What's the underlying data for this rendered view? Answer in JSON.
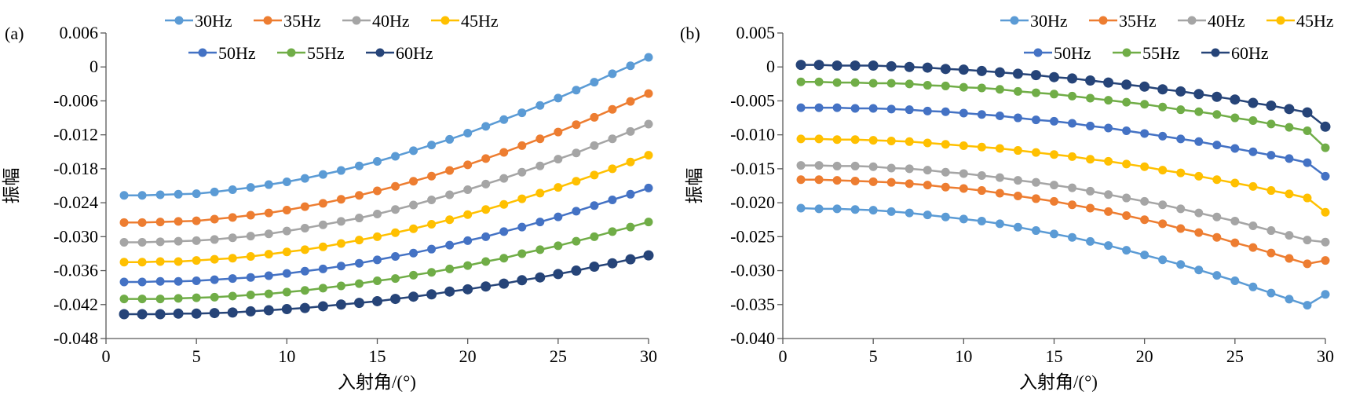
{
  "chart_data": [
    {
      "type": "line",
      "panel_label": "(a)",
      "xlabel": "入射角/(°)",
      "ylabel": "振幅",
      "xlim": [
        0,
        30
      ],
      "ylim": [
        -0.048,
        0.006
      ],
      "xticks": [
        0,
        5,
        10,
        15,
        20,
        25,
        30
      ],
      "yticks": [
        0.006,
        0,
        -0.006,
        -0.012,
        -0.018,
        -0.024,
        -0.03,
        -0.036,
        -0.042,
        -0.048
      ],
      "ytick_labels": [
        "0.006",
        "0",
        "-0.006",
        "-0.012",
        "-0.018",
        "-0.024",
        "-0.030",
        "-0.036",
        "-0.042",
        "-0.048"
      ],
      "xtick_labels": [
        "0",
        "5",
        "10",
        "15",
        "20",
        "25",
        "30"
      ],
      "grid": false,
      "legend_position": "top",
      "x": [
        1,
        2,
        3,
        4,
        5,
        6,
        7,
        8,
        9,
        10,
        11,
        12,
        13,
        14,
        15,
        16,
        17,
        18,
        19,
        20,
        21,
        22,
        23,
        24,
        25,
        26,
        27,
        28,
        29,
        30
      ],
      "series": [
        {
          "name": "30Hz",
          "color": "#5B9BD5",
          "values": [
            -0.0227,
            -0.0227,
            -0.0226,
            -0.0225,
            -0.0224,
            -0.0221,
            -0.0217,
            -0.0213,
            -0.0208,
            -0.0203,
            -0.0197,
            -0.019,
            -0.0183,
            -0.0175,
            -0.0167,
            -0.0158,
            -0.0148,
            -0.0138,
            -0.0128,
            -0.0117,
            -0.0105,
            -0.0093,
            -0.0081,
            -0.0068,
            -0.0055,
            -0.0041,
            -0.0027,
            -0.0012,
            0.0002,
            0.0017
          ]
        },
        {
          "name": "35Hz",
          "color": "#ED7D31",
          "values": [
            -0.0275,
            -0.0275,
            -0.0274,
            -0.0273,
            -0.0272,
            -0.0269,
            -0.0266,
            -0.0262,
            -0.0258,
            -0.0253,
            -0.0247,
            -0.0241,
            -0.0234,
            -0.0227,
            -0.0219,
            -0.0211,
            -0.0202,
            -0.0193,
            -0.0183,
            -0.0173,
            -0.0162,
            -0.0151,
            -0.0139,
            -0.0127,
            -0.0115,
            -0.0102,
            -0.0089,
            -0.0075,
            -0.0061,
            -0.0047
          ]
        },
        {
          "name": "40Hz",
          "color": "#A5A5A5",
          "values": [
            -0.031,
            -0.031,
            -0.0309,
            -0.0308,
            -0.0307,
            -0.0305,
            -0.0302,
            -0.0299,
            -0.0295,
            -0.029,
            -0.0285,
            -0.0279,
            -0.0273,
            -0.0267,
            -0.026,
            -0.0252,
            -0.0244,
            -0.0235,
            -0.0226,
            -0.0217,
            -0.0207,
            -0.0197,
            -0.0186,
            -0.0175,
            -0.0163,
            -0.0152,
            -0.0139,
            -0.0127,
            -0.0114,
            -0.0101
          ]
        },
        {
          "name": "45Hz",
          "color": "#FFC000",
          "values": [
            -0.0345,
            -0.0345,
            -0.0344,
            -0.0344,
            -0.0342,
            -0.034,
            -0.0338,
            -0.0335,
            -0.0331,
            -0.0327,
            -0.0323,
            -0.0318,
            -0.0312,
            -0.0306,
            -0.03,
            -0.0293,
            -0.0286,
            -0.0278,
            -0.027,
            -0.0261,
            -0.0252,
            -0.0243,
            -0.0233,
            -0.0223,
            -0.0213,
            -0.0202,
            -0.0191,
            -0.018,
            -0.0168,
            -0.0156
          ]
        },
        {
          "name": "50Hz",
          "color": "#4472C4",
          "values": [
            -0.038,
            -0.038,
            -0.0379,
            -0.0379,
            -0.0378,
            -0.0376,
            -0.0374,
            -0.0372,
            -0.0369,
            -0.0365,
            -0.0361,
            -0.0357,
            -0.0352,
            -0.0347,
            -0.0341,
            -0.0335,
            -0.0329,
            -0.0322,
            -0.0315,
            -0.0307,
            -0.03,
            -0.0291,
            -0.0283,
            -0.0274,
            -0.0265,
            -0.0255,
            -0.0245,
            -0.0235,
            -0.0225,
            -0.0214
          ]
        },
        {
          "name": "55Hz",
          "color": "#70AD47",
          "values": [
            -0.041,
            -0.041,
            -0.041,
            -0.0409,
            -0.0408,
            -0.0407,
            -0.0405,
            -0.0403,
            -0.0401,
            -0.0398,
            -0.0395,
            -0.0391,
            -0.0387,
            -0.0383,
            -0.0378,
            -0.0374,
            -0.0368,
            -0.0363,
            -0.0357,
            -0.0351,
            -0.0344,
            -0.0338,
            -0.033,
            -0.0323,
            -0.0316,
            -0.0308,
            -0.03,
            -0.0291,
            -0.0283,
            -0.0274
          ]
        },
        {
          "name": "60Hz",
          "color": "#264478",
          "values": [
            -0.0437,
            -0.0437,
            -0.0437,
            -0.0436,
            -0.0436,
            -0.0435,
            -0.0434,
            -0.0432,
            -0.043,
            -0.0428,
            -0.0426,
            -0.0423,
            -0.042,
            -0.0417,
            -0.0414,
            -0.041,
            -0.0406,
            -0.0402,
            -0.0397,
            -0.0393,
            -0.0388,
            -0.0383,
            -0.0377,
            -0.0372,
            -0.0366,
            -0.036,
            -0.0353,
            -0.0347,
            -0.034,
            -0.0333
          ]
        }
      ]
    },
    {
      "type": "line",
      "panel_label": "(b)",
      "xlabel": "入射角/(°)",
      "ylabel": "振幅",
      "xlim": [
        0,
        30
      ],
      "ylim": [
        -0.04,
        0.005
      ],
      "xticks": [
        0,
        5,
        10,
        15,
        20,
        25,
        30
      ],
      "yticks": [
        0.005,
        0,
        -0.005,
        -0.01,
        -0.015,
        -0.02,
        -0.025,
        -0.03,
        -0.035,
        -0.04
      ],
      "ytick_labels": [
        "0.005",
        "0",
        "-0.005",
        "-0.010",
        "-0.015",
        "-0.020",
        "-0.025",
        "-0.030",
        "-0.035",
        "-0.040"
      ],
      "xtick_labels": [
        "0",
        "5",
        "10",
        "15",
        "20",
        "25",
        "30"
      ],
      "grid": false,
      "legend_position": "top",
      "x": [
        1,
        2,
        3,
        4,
        5,
        6,
        7,
        8,
        9,
        10,
        11,
        12,
        13,
        14,
        15,
        16,
        17,
        18,
        19,
        20,
        21,
        22,
        23,
        24,
        25,
        26,
        27,
        28,
        29,
        30
      ],
      "series": [
        {
          "name": "30Hz",
          "color": "#5B9BD5",
          "values": [
            -0.0208,
            -0.0209,
            -0.0209,
            -0.021,
            -0.0211,
            -0.0213,
            -0.0215,
            -0.0218,
            -0.0221,
            -0.0224,
            -0.0227,
            -0.0231,
            -0.0236,
            -0.0241,
            -0.0246,
            -0.0251,
            -0.0257,
            -0.0263,
            -0.027,
            -0.0277,
            -0.0284,
            -0.0291,
            -0.0299,
            -0.0307,
            -0.0315,
            -0.0324,
            -0.0333,
            -0.0342,
            -0.0351,
            -0.0335
          ]
        },
        {
          "name": "35Hz",
          "color": "#ED7D31",
          "values": [
            -0.0166,
            -0.0166,
            -0.0167,
            -0.0168,
            -0.0169,
            -0.017,
            -0.0172,
            -0.0174,
            -0.0177,
            -0.0179,
            -0.0182,
            -0.0186,
            -0.019,
            -0.0194,
            -0.0198,
            -0.0203,
            -0.0208,
            -0.0213,
            -0.0219,
            -0.0225,
            -0.0231,
            -0.0238,
            -0.0244,
            -0.0251,
            -0.0259,
            -0.0266,
            -0.0274,
            -0.0282,
            -0.029,
            -0.0285
          ]
        },
        {
          "name": "40Hz",
          "color": "#A5A5A5",
          "values": [
            -0.0145,
            -0.0145,
            -0.0146,
            -0.0146,
            -0.0147,
            -0.0149,
            -0.015,
            -0.0152,
            -0.0155,
            -0.0157,
            -0.016,
            -0.0163,
            -0.0167,
            -0.017,
            -0.0174,
            -0.0178,
            -0.0183,
            -0.0188,
            -0.0193,
            -0.0198,
            -0.0203,
            -0.0209,
            -0.0215,
            -0.0221,
            -0.0227,
            -0.0234,
            -0.0241,
            -0.0248,
            -0.0255,
            -0.0258
          ]
        },
        {
          "name": "45Hz",
          "color": "#FFC000",
          "values": [
            -0.0106,
            -0.0106,
            -0.0107,
            -0.0107,
            -0.0108,
            -0.0109,
            -0.011,
            -0.0112,
            -0.0114,
            -0.0116,
            -0.0118,
            -0.012,
            -0.0123,
            -0.0126,
            -0.0129,
            -0.0132,
            -0.0136,
            -0.0139,
            -0.0143,
            -0.0147,
            -0.0152,
            -0.0156,
            -0.0161,
            -0.0166,
            -0.0171,
            -0.0176,
            -0.0182,
            -0.0187,
            -0.0193,
            -0.0214
          ]
        },
        {
          "name": "50Hz",
          "color": "#4472C4",
          "values": [
            -0.006,
            -0.006,
            -0.006,
            -0.0061,
            -0.0061,
            -0.0062,
            -0.0063,
            -0.0065,
            -0.0066,
            -0.0068,
            -0.007,
            -0.0072,
            -0.0075,
            -0.0078,
            -0.008,
            -0.0083,
            -0.0087,
            -0.009,
            -0.0094,
            -0.0098,
            -0.0102,
            -0.0106,
            -0.011,
            -0.0115,
            -0.012,
            -0.0125,
            -0.013,
            -0.0135,
            -0.0141,
            -0.0161
          ]
        },
        {
          "name": "55Hz",
          "color": "#70AD47",
          "values": [
            -0.0022,
            -0.0022,
            -0.0023,
            -0.0023,
            -0.0024,
            -0.0024,
            -0.0025,
            -0.0027,
            -0.0028,
            -0.003,
            -0.0031,
            -0.0033,
            -0.0036,
            -0.0038,
            -0.004,
            -0.0043,
            -0.0046,
            -0.0049,
            -0.0052,
            -0.0055,
            -0.0059,
            -0.0063,
            -0.0066,
            -0.007,
            -0.0075,
            -0.0079,
            -0.0084,
            -0.0089,
            -0.0094,
            -0.0119
          ]
        },
        {
          "name": "60Hz",
          "color": "#264478",
          "values": [
            0.0003,
            0.0003,
            0.0002,
            0.0002,
            0.0002,
            0.0001,
            0.0,
            -0.0001,
            -0.0003,
            -0.0004,
            -0.0006,
            -0.0008,
            -0.001,
            -0.0012,
            -0.0015,
            -0.0017,
            -0.002,
            -0.0023,
            -0.0026,
            -0.0029,
            -0.0033,
            -0.0036,
            -0.004,
            -0.0044,
            -0.0048,
            -0.0053,
            -0.0057,
            -0.0062,
            -0.0067,
            -0.0088
          ]
        }
      ]
    }
  ]
}
